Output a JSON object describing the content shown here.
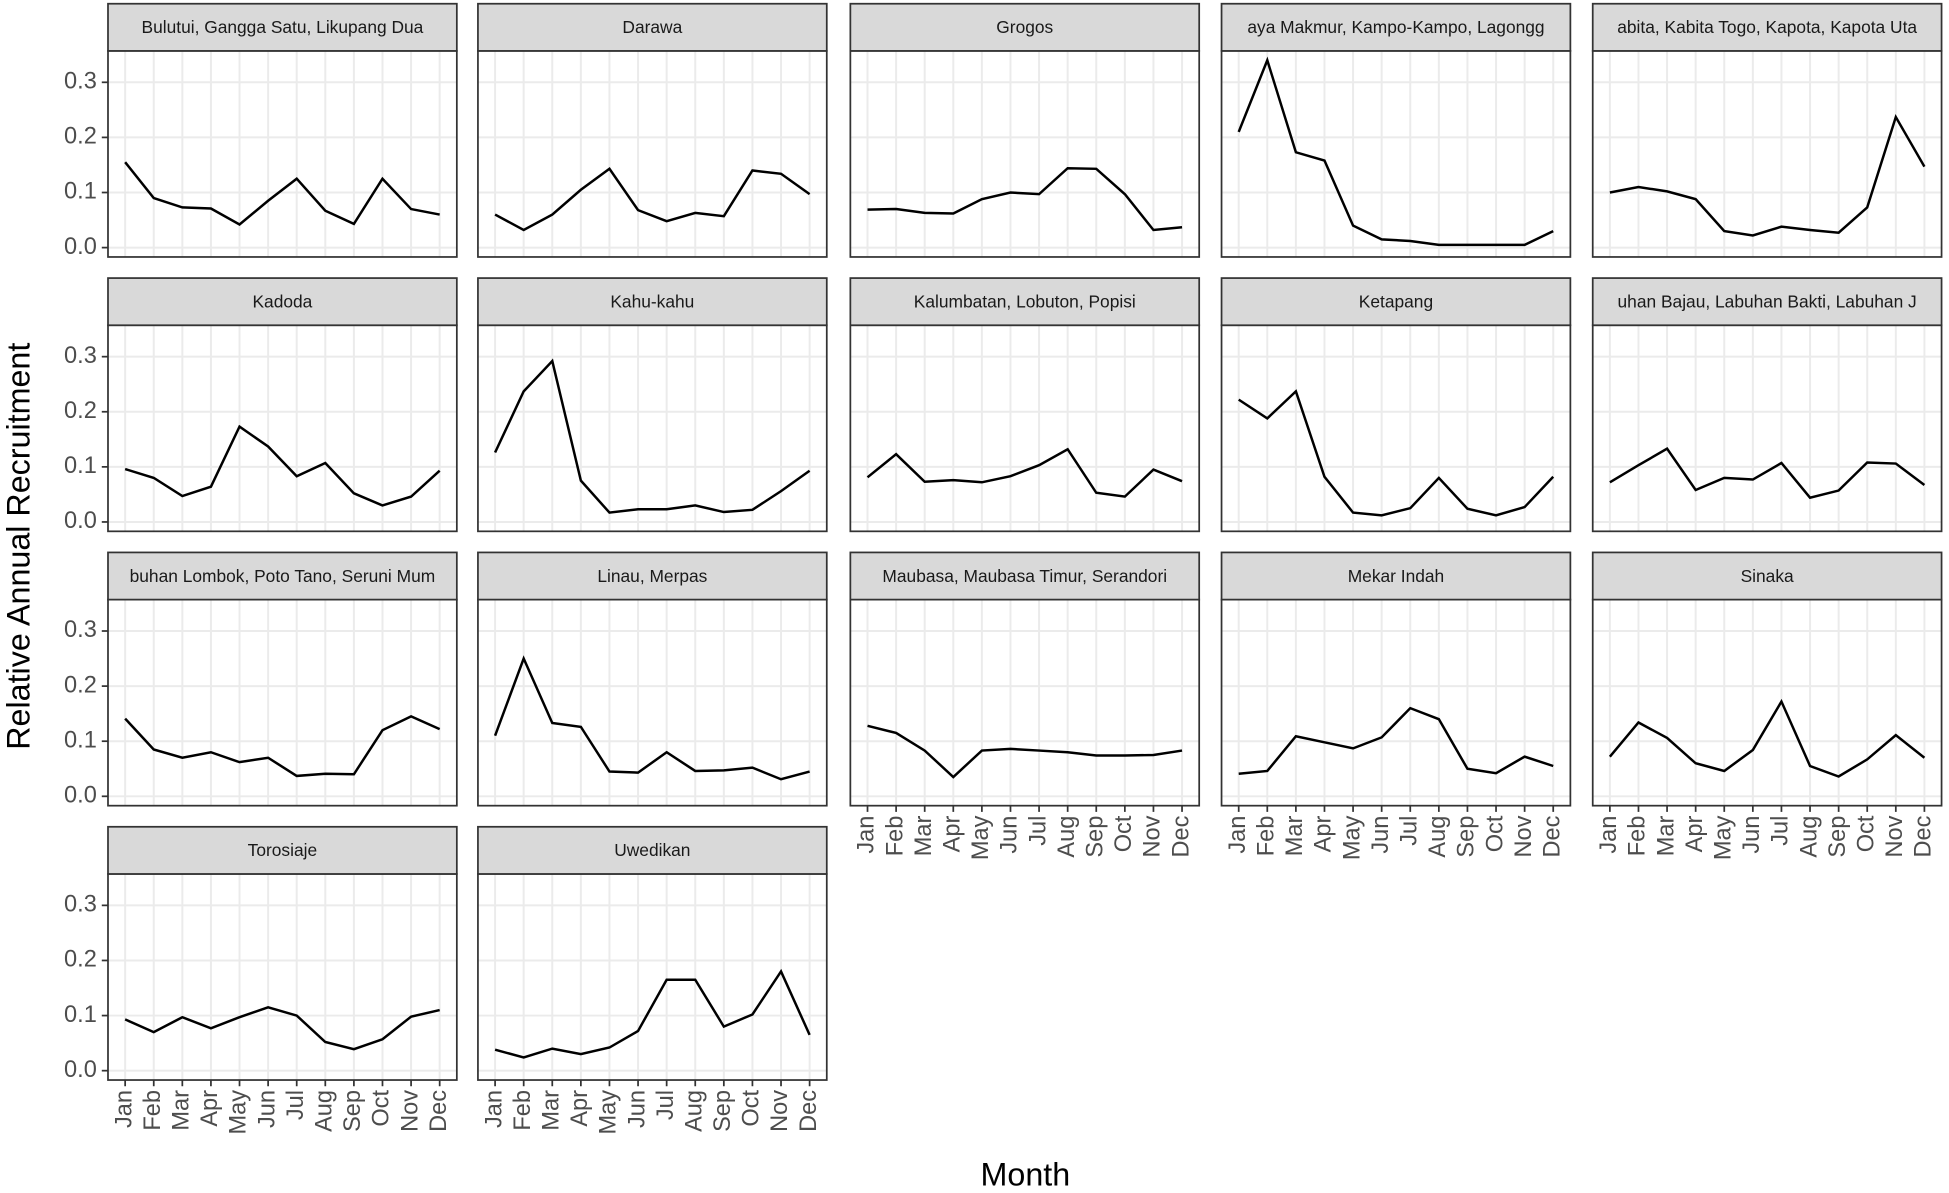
{
  "chart_data": {
    "type": "line",
    "x_label": "Month",
    "y_label": "Relative Annual Recruitment",
    "categories": [
      "Jan",
      "Feb",
      "Mar",
      "Apr",
      "May",
      "Jun",
      "Jul",
      "Aug",
      "Sep",
      "Oct",
      "Nov",
      "Dec"
    ],
    "ylim": [
      -0.017,
      0.357
    ],
    "yticks": [
      {
        "value": 0,
        "label": "0.0"
      },
      0.1,
      0.2,
      0.3
    ],
    "grid": true,
    "color": "#000000",
    "panels": [
      {
        "title": "Bulutui, Gangga Satu, Likupang Dua",
        "values": [
          0.155,
          0.09,
          0.073,
          0.071,
          0.042,
          0.085,
          0.125,
          0.067,
          0.043,
          0.125,
          0.07,
          0.06
        ]
      },
      {
        "title": "Darawa",
        "values": [
          0.06,
          0.032,
          0.06,
          0.105,
          0.143,
          0.068,
          0.048,
          0.063,
          0.057,
          0.14,
          0.134,
          0.097
        ]
      },
      {
        "title": "Grogos",
        "values": [
          0.069,
          0.07,
          0.063,
          0.062,
          0.088,
          0.1,
          0.097,
          0.144,
          0.143,
          0.097,
          0.032,
          0.037
        ]
      },
      {
        "title": "aya Makmur, Kampo-Kampo, Lagongg",
        "values": [
          0.21,
          0.34,
          0.173,
          0.158,
          0.04,
          0.015,
          0.012,
          0.005,
          0.005,
          0.005,
          0.005,
          0.03
        ]
      },
      {
        "title": "abita, Kabita Togo, Kapota, Kapota Uta",
        "values": [
          0.1,
          0.11,
          0.102,
          0.088,
          0.03,
          0.022,
          0.038,
          0.032,
          0.027,
          0.073,
          0.237,
          0.147
        ]
      },
      {
        "title": "Kadoda",
        "values": [
          0.096,
          0.08,
          0.047,
          0.064,
          0.173,
          0.137,
          0.083,
          0.107,
          0.052,
          0.03,
          0.046,
          0.093
        ]
      },
      {
        "title": "Kahu-kahu",
        "values": [
          0.126,
          0.237,
          0.292,
          0.075,
          0.017,
          0.023,
          0.023,
          0.03,
          0.018,
          0.022,
          0.056,
          0.093
        ]
      },
      {
        "title": "Kalumbatan, Lobuton, Popisi",
        "values": [
          0.081,
          0.123,
          0.073,
          0.076,
          0.072,
          0.083,
          0.103,
          0.132,
          0.053,
          0.046,
          0.095,
          0.074
        ]
      },
      {
        "title": "Ketapang",
        "values": [
          0.222,
          0.188,
          0.237,
          0.082,
          0.017,
          0.012,
          0.025,
          0.08,
          0.024,
          0.012,
          0.027,
          0.082
        ]
      },
      {
        "title": "uhan Bajau, Labuhan Bakti, Labuhan J",
        "values": [
          0.072,
          0.103,
          0.133,
          0.058,
          0.08,
          0.077,
          0.107,
          0.044,
          0.057,
          0.108,
          0.106,
          0.067
        ]
      },
      {
        "title": "buhan Lombok, Poto Tano, Seruni Mum",
        "values": [
          0.141,
          0.085,
          0.07,
          0.08,
          0.062,
          0.07,
          0.037,
          0.041,
          0.04,
          0.12,
          0.145,
          0.122
        ]
      },
      {
        "title": "Linau, Merpas",
        "values": [
          0.11,
          0.25,
          0.133,
          0.126,
          0.045,
          0.043,
          0.08,
          0.046,
          0.047,
          0.052,
          0.031,
          0.045
        ]
      },
      {
        "title": "Maubasa, Maubasa Timur, Serandori",
        "values": [
          0.128,
          0.115,
          0.083,
          0.035,
          0.083,
          0.086,
          0.083,
          0.08,
          0.074,
          0.074,
          0.075,
          0.083
        ]
      },
      {
        "title": "Mekar Indah",
        "values": [
          0.041,
          0.046,
          0.109,
          0.098,
          0.087,
          0.107,
          0.16,
          0.14,
          0.05,
          0.042,
          0.072,
          0.055
        ]
      },
      {
        "title": "Sinaka",
        "values": [
          0.072,
          0.134,
          0.106,
          0.06,
          0.046,
          0.084,
          0.172,
          0.055,
          0.036,
          0.067,
          0.111,
          0.07
        ]
      },
      {
        "title": "Torosiaje",
        "values": [
          0.093,
          0.07,
          0.097,
          0.077,
          0.097,
          0.115,
          0.1,
          0.052,
          0.039,
          0.057,
          0.098,
          0.11
        ]
      },
      {
        "title": "Uwedikan",
        "values": [
          0.038,
          0.024,
          0.04,
          0.03,
          0.042,
          0.072,
          0.165,
          0.165,
          0.08,
          0.102,
          0.18,
          0.065
        ]
      }
    ]
  }
}
